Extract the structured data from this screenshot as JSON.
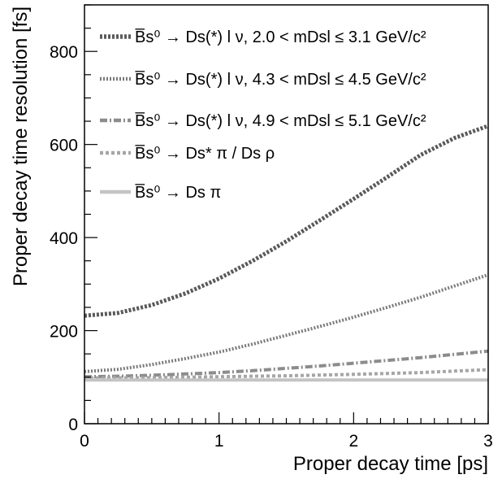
{
  "chart_data": {
    "type": "line",
    "xlabel": "Proper decay time [ps]",
    "ylabel": "Proper decay time resolution [fs]",
    "xlim": [
      0,
      3
    ],
    "ylim": [
      0,
      900
    ],
    "xticks": [
      0,
      1,
      2,
      3
    ],
    "yticks": [
      0,
      200,
      400,
      600,
      800
    ],
    "x": [
      0,
      0.25,
      0.5,
      0.75,
      1.0,
      1.25,
      1.5,
      1.75,
      2.0,
      2.25,
      2.5,
      2.75,
      3.0
    ],
    "legend_position": "top-left",
    "series": [
      {
        "name": "B̅s⁰ → Ds(*) l ν, 2.0 < mDsl ≤ 3.1 GeV/c²",
        "color": "#5a5a5a",
        "style": "dotted-heavy",
        "values": [
          232,
          238,
          255,
          280,
          312,
          350,
          392,
          437,
          483,
          530,
          578,
          614,
          640
        ]
      },
      {
        "name": "B̅s⁰ → Ds(*) l ν, 4.3 < mDsl ≤ 4.5 GeV/c²",
        "color": "#7a7a7a",
        "style": "dotted",
        "values": [
          112,
          117,
          127,
          140,
          154,
          171,
          190,
          209,
          229,
          250,
          272,
          296,
          320
        ]
      },
      {
        "name": "B̅s⁰ → Ds(*) l ν, 4.9 < mDsl ≤ 5.1 GeV/c²",
        "color": "#8c8c8c",
        "style": "dashdot",
        "values": [
          101,
          102,
          104,
          107,
          110,
          114,
          119,
          124,
          130,
          136,
          142,
          149,
          156
        ]
      },
      {
        "name": "B̅s⁰ → Ds* π / Ds ρ",
        "color": "#a6a6a6",
        "style": "dashed",
        "values": [
          98,
          98.5,
          99,
          100,
          101,
          102,
          103,
          104.5,
          106,
          108,
          110,
          113,
          116
        ]
      },
      {
        "name": "B̅s⁰ → Ds π",
        "color": "#c4c4c4",
        "style": "solid",
        "values": [
          94,
          94,
          94,
          94,
          94,
          94,
          94,
          94,
          94,
          94,
          94,
          94,
          94
        ]
      }
    ]
  }
}
